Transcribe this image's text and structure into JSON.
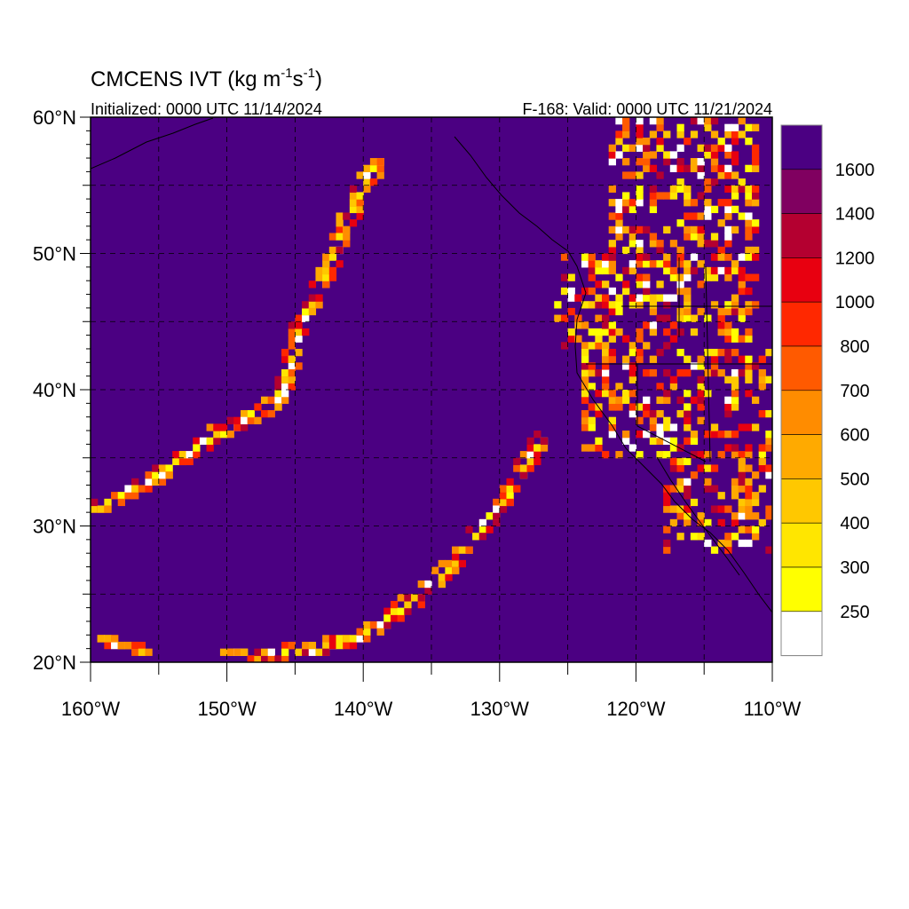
{
  "title": {
    "main": "CMCENS IVT (kg m",
    "sup1": "-1",
    "mid": "s",
    "sup2": "-1",
    "close": ")"
  },
  "subtitle_left": "Initialized: 0000 UTC 11/14/2024",
  "subtitle_right": "F-168: Valid: 0000 UTC 11/21/2024",
  "map": {
    "lon_range": [
      -160,
      -110
    ],
    "lat_range": [
      20,
      60
    ],
    "background_fill": "#4B0082",
    "lat_labels": [
      {
        "lat": 60,
        "label": "60°N"
      },
      {
        "lat": 50,
        "label": "50°N"
      },
      {
        "lat": 40,
        "label": "40°N"
      },
      {
        "lat": 30,
        "label": "30°N"
      },
      {
        "lat": 20,
        "label": "20°N"
      }
    ],
    "lon_labels": [
      {
        "lon": -160,
        "label": "160°W"
      },
      {
        "lon": -150,
        "label": "150°W"
      },
      {
        "lon": -140,
        "label": "140°W"
      },
      {
        "lon": -130,
        "label": "130°W"
      },
      {
        "lon": -120,
        "label": "120°W"
      },
      {
        "lon": -110,
        "label": "110°W"
      }
    ],
    "grid": true,
    "features": [
      "pacific-ocean",
      "north-america-west-coast-coastline",
      "state-boundaries"
    ]
  },
  "colorbar": {
    "labels": [
      "1600",
      "1400",
      "1200",
      "1000",
      "800",
      "700",
      "600",
      "500",
      "400",
      "300",
      "250"
    ],
    "colors": [
      "#4B0082",
      "#800060",
      "#B40030",
      "#E80010",
      "#FF2800",
      "#FF5A00",
      "#FF8C00",
      "#FFAA00",
      "#FFC800",
      "#FFE600",
      "#FFFF00",
      "#FFFFFF"
    ]
  },
  "chart_data": {
    "type": "heatmap",
    "variable": "IVT",
    "units": "kg m-1 s-1",
    "levels": [
      250,
      300,
      400,
      500,
      600,
      700,
      800,
      1000,
      1200,
      1400,
      1600
    ],
    "xlim": [
      -160,
      -110
    ],
    "ylim": [
      20,
      60
    ],
    "bands": [
      {
        "path": [
          [
            -160,
            31
          ],
          [
            -156,
            33
          ],
          [
            -151,
            36.5
          ],
          [
            -147,
            38.5
          ],
          [
            -146,
            40
          ],
          [
            -145,
            44
          ],
          [
            -143,
            48
          ],
          [
            -141.5,
            52
          ],
          [
            -140,
            55
          ],
          [
            -139,
            57
          ]
        ]
      },
      {
        "path": [
          [
            -150,
            20.3
          ],
          [
            -144,
            20.6
          ],
          [
            -140,
            21.8
          ],
          [
            -137,
            24
          ],
          [
            -134,
            26.5
          ],
          [
            -132,
            29
          ],
          [
            -130,
            31.5
          ],
          [
            -128.5,
            34
          ],
          [
            -127,
            36.5
          ]
        ]
      },
      {
        "path": [
          [
            -160,
            21.5
          ],
          [
            -158,
            21
          ],
          [
            -156,
            20.5
          ]
        ]
      }
    ],
    "regions": [
      {
        "lon": [
          -122,
          -111
        ],
        "lat": [
          50,
          60
        ]
      },
      {
        "lon": [
          -126,
          -111
        ],
        "lat": [
          43,
          50
        ]
      },
      {
        "lon": [
          -124,
          -110
        ],
        "lat": [
          35,
          43
        ]
      },
      {
        "lon": [
          -118,
          -110
        ],
        "lat": [
          28,
          35
        ]
      }
    ]
  }
}
